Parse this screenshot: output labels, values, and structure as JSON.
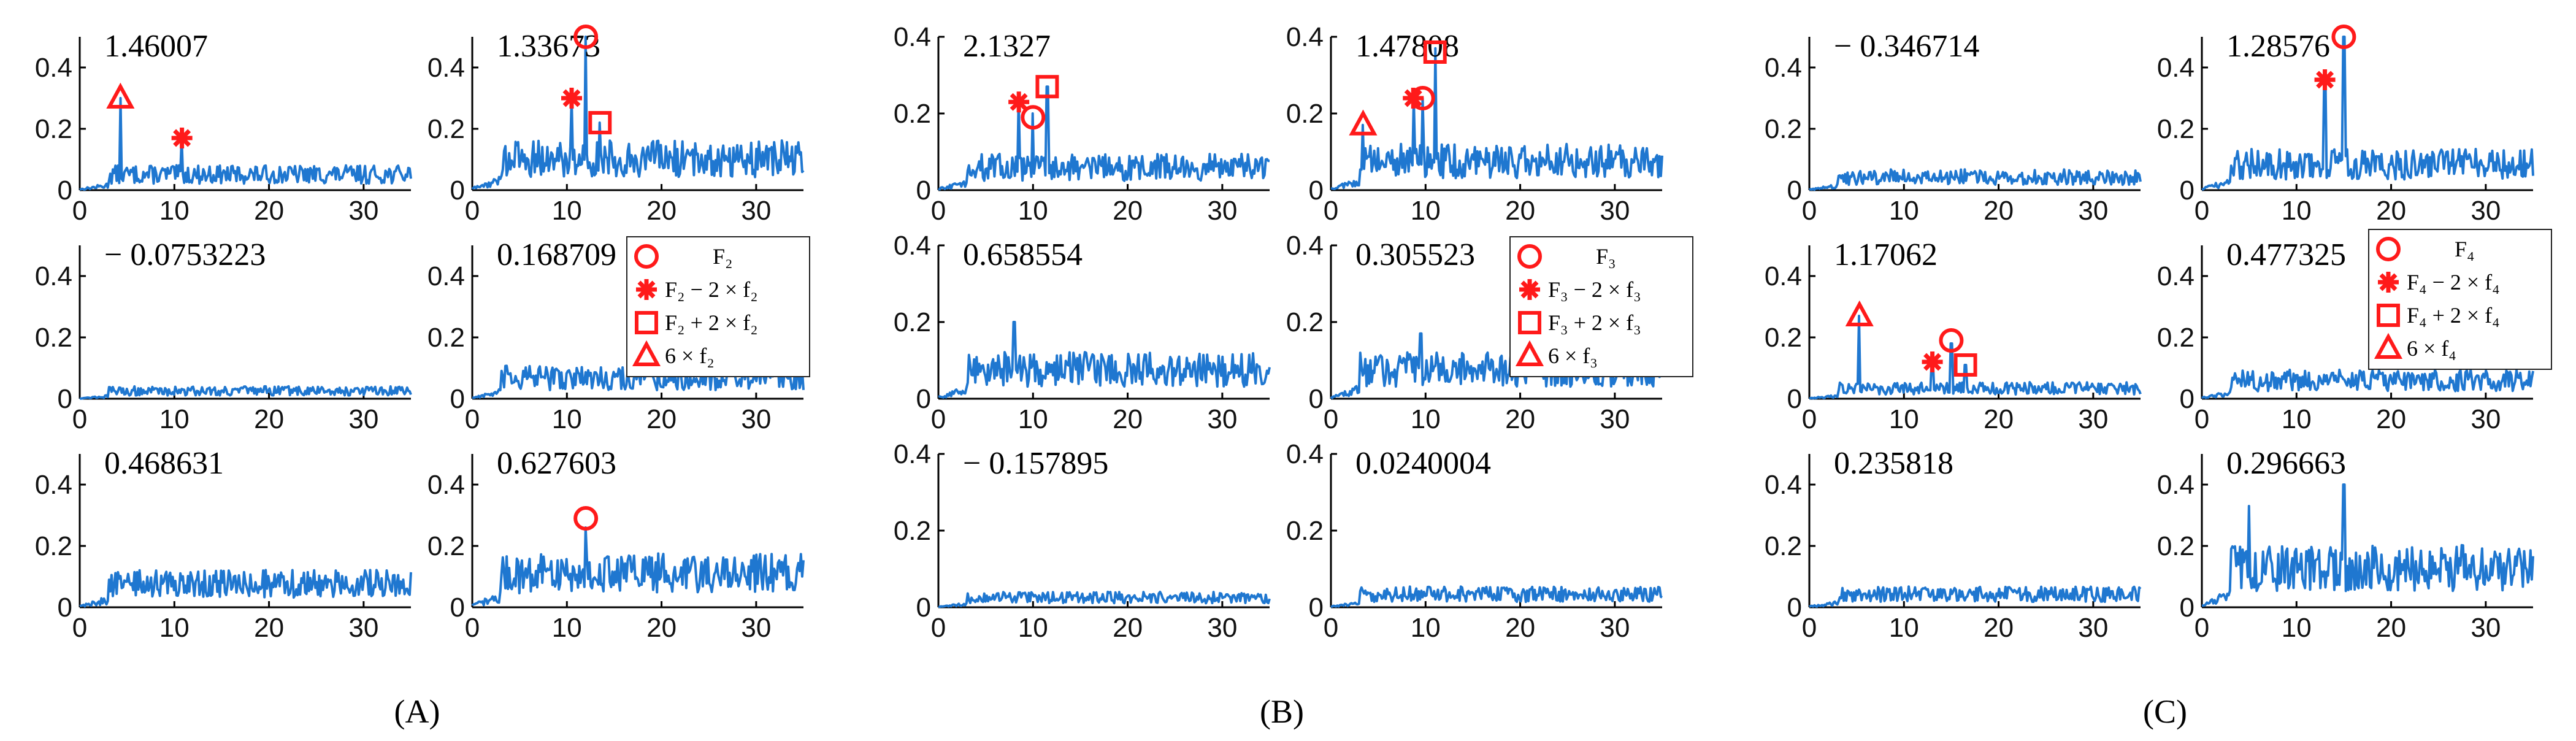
{
  "panel_labels": [
    "(A)",
    "(B)",
    "(C)"
  ],
  "legends": [
    {
      "group": "A",
      "entries": [
        "F₂",
        "F₂ − 2 × f₂",
        "F₂ + 2 × f₂",
        "6 × f₂"
      ]
    },
    {
      "group": "B",
      "entries": [
        "F₃",
        "F₃ − 2 × f₃",
        "F₃ + 2 × f₃",
        "6 × f₃"
      ]
    },
    {
      "group": "C",
      "entries": [
        "F₄",
        "F₄ − 2 × f₄",
        "F₄ + 2 × f₄",
        "6 × f₄"
      ]
    }
  ],
  "marker_legend_symbols": [
    "circle",
    "asterisk",
    "square",
    "triangle"
  ],
  "colors": {
    "line": "#1f77d0",
    "marker": "#ff1a1a"
  },
  "chart_data": [
    {
      "type": "line",
      "group": "A",
      "row": 0,
      "col": 0,
      "annotation": "1.46007",
      "xlim": [
        0,
        35
      ],
      "ylim": [
        0,
        0.5
      ],
      "xticks": [
        "0",
        "10",
        "20",
        "30"
      ],
      "yticks": [
        "0",
        "0.2",
        "0.4"
      ],
      "spikes": [
        [
          4.3,
          0.3
        ],
        [
          10.8,
          0.17
        ]
      ],
      "base_level": 0.06,
      "markers": [
        {
          "symbol": "triangle",
          "x": 4.3,
          "y": 0.3
        },
        {
          "symbol": "asterisk",
          "x": 10.8,
          "y": 0.17
        }
      ]
    },
    {
      "type": "line",
      "group": "A",
      "row": 0,
      "col": 1,
      "annotation": "1.33673",
      "xlim": [
        0,
        35
      ],
      "ylim": [
        0,
        0.5
      ],
      "xticks": [
        "0",
        "10",
        "20",
        "30"
      ],
      "yticks": [
        "0",
        "0.2",
        "0.4"
      ],
      "spikes": [
        [
          10.5,
          0.3
        ],
        [
          12.0,
          0.5
        ],
        [
          13.5,
          0.22
        ]
      ],
      "base_level": 0.12,
      "markers": [
        {
          "symbol": "asterisk",
          "x": 10.5,
          "y": 0.3
        },
        {
          "symbol": "circle",
          "x": 12.0,
          "y": 0.5
        },
        {
          "symbol": "square",
          "x": 13.5,
          "y": 0.22
        }
      ]
    },
    {
      "type": "line",
      "group": "A",
      "row": 1,
      "col": 0,
      "annotation": "− 0.0753223",
      "xlim": [
        0,
        35
      ],
      "ylim": [
        0,
        0.5
      ],
      "xticks": [
        "0",
        "10",
        "20",
        "30"
      ],
      "yticks": [
        "0",
        "0.2",
        "0.4"
      ],
      "spikes": [],
      "base_level": 0.03,
      "markers": []
    },
    {
      "type": "line",
      "group": "A",
      "row": 1,
      "col": 1,
      "annotation": "0.168709",
      "xlim": [
        0,
        35
      ],
      "ylim": [
        0,
        0.5
      ],
      "xticks": [
        "0",
        "10",
        "20",
        "30"
      ],
      "yticks": [
        "0",
        "0.2",
        "0.4"
      ],
      "spikes": [],
      "base_level": 0.08,
      "markers": []
    },
    {
      "type": "line",
      "group": "A",
      "row": 2,
      "col": 0,
      "annotation": "0.468631",
      "xlim": [
        0,
        35
      ],
      "ylim": [
        0,
        0.5
      ],
      "xticks": [
        "0",
        "10",
        "20",
        "30"
      ],
      "yticks": [
        "0",
        "0.2",
        "0.4"
      ],
      "spikes": [],
      "base_level": 0.09,
      "markers": []
    },
    {
      "type": "line",
      "group": "A",
      "row": 2,
      "col": 1,
      "annotation": "0.627603",
      "xlim": [
        0,
        35
      ],
      "ylim": [
        0,
        0.5
      ],
      "xticks": [
        "0",
        "10",
        "20",
        "30"
      ],
      "yticks": [
        "0",
        "0.2",
        "0.4"
      ],
      "spikes": [
        [
          12.0,
          0.26
        ]
      ],
      "base_level": 0.13,
      "markers": [
        {
          "symbol": "circle",
          "x": 12.0,
          "y": 0.29
        }
      ]
    },
    {
      "type": "line",
      "group": "B",
      "row": 0,
      "col": 0,
      "annotation": "2.1327",
      "xlim": [
        0,
        35
      ],
      "ylim": [
        0,
        0.4
      ],
      "xticks": [
        "0",
        "10",
        "20",
        "30"
      ],
      "yticks": [
        "0",
        "0.2",
        "0.4"
      ],
      "spikes": [
        [
          8.5,
          0.24
        ],
        [
          10.0,
          0.2
        ],
        [
          11.5,
          0.27
        ]
      ],
      "base_level": 0.07,
      "markers": [
        {
          "symbol": "asterisk",
          "x": 8.5,
          "y": 0.23
        },
        {
          "symbol": "circle",
          "x": 10.0,
          "y": 0.19
        },
        {
          "symbol": "square",
          "x": 11.5,
          "y": 0.27
        }
      ]
    },
    {
      "type": "line",
      "group": "B",
      "row": 0,
      "col": 1,
      "annotation": "1.47808",
      "xlim": [
        0,
        35
      ],
      "ylim": [
        0,
        0.4
      ],
      "xticks": [
        "0",
        "10",
        "20",
        "30"
      ],
      "yticks": [
        "0",
        "0.2",
        "0.4"
      ],
      "spikes": [
        [
          3.4,
          0.17
        ],
        [
          8.7,
          0.24
        ],
        [
          9.7,
          0.24
        ],
        [
          11.0,
          0.37
        ]
      ],
      "base_level": 0.09,
      "markers": [
        {
          "symbol": "triangle",
          "x": 3.4,
          "y": 0.17
        },
        {
          "symbol": "asterisk",
          "x": 8.7,
          "y": 0.24
        },
        {
          "symbol": "circle",
          "x": 9.7,
          "y": 0.24
        },
        {
          "symbol": "square",
          "x": 11.0,
          "y": 0.36
        }
      ]
    },
    {
      "type": "line",
      "group": "B",
      "row": 1,
      "col": 0,
      "annotation": "0.658554",
      "xlim": [
        0,
        35
      ],
      "ylim": [
        0,
        0.4
      ],
      "xticks": [
        "0",
        "10",
        "20",
        "30"
      ],
      "yticks": [
        "0",
        "0.2",
        "0.4"
      ],
      "spikes": [
        [
          8.0,
          0.2
        ]
      ],
      "base_level": 0.09,
      "markers": []
    },
    {
      "type": "line",
      "group": "B",
      "row": 1,
      "col": 1,
      "annotation": "0.305523",
      "xlim": [
        0,
        35
      ],
      "ylim": [
        0,
        0.4
      ],
      "xticks": [
        "0",
        "10",
        "20",
        "30"
      ],
      "yticks": [
        "0",
        "0.2",
        "0.4"
      ],
      "spikes": [
        [
          9.5,
          0.17
        ]
      ],
      "base_level": 0.09,
      "markers": []
    },
    {
      "type": "line",
      "group": "B",
      "row": 2,
      "col": 0,
      "annotation": "− 0.157895",
      "xlim": [
        0,
        35
      ],
      "ylim": [
        0,
        0.4
      ],
      "xticks": [
        "0",
        "10",
        "20",
        "30"
      ],
      "yticks": [
        "0",
        "0.2",
        "0.4"
      ],
      "spikes": [],
      "base_level": 0.03,
      "markers": []
    },
    {
      "type": "line",
      "group": "B",
      "row": 2,
      "col": 1,
      "annotation": "0.0240004",
      "xlim": [
        0,
        35
      ],
      "ylim": [
        0,
        0.4
      ],
      "xticks": [
        "0",
        "10",
        "20",
        "30"
      ],
      "yticks": [
        "0",
        "0.2",
        "0.4"
      ],
      "spikes": [],
      "base_level": 0.04,
      "markers": []
    },
    {
      "type": "line",
      "group": "C",
      "row": 0,
      "col": 0,
      "annotation": "− 0.346714",
      "xlim": [
        0,
        35
      ],
      "ylim": [
        0,
        0.5
      ],
      "xticks": [
        "0",
        "10",
        "20",
        "30"
      ],
      "yticks": [
        "0",
        "0.2",
        "0.4"
      ],
      "spikes": [],
      "base_level": 0.05,
      "markers": []
    },
    {
      "type": "line",
      "group": "C",
      "row": 0,
      "col": 1,
      "annotation": "1.28576",
      "xlim": [
        0,
        35
      ],
      "ylim": [
        0,
        0.5
      ],
      "xticks": [
        "0",
        "10",
        "20",
        "30"
      ],
      "yticks": [
        "0",
        "0.2",
        "0.4"
      ],
      "spikes": [
        [
          13.0,
          0.36
        ],
        [
          15.0,
          0.5
        ]
      ],
      "base_level": 0.1,
      "markers": [
        {
          "symbol": "asterisk",
          "x": 13.0,
          "y": 0.36
        },
        {
          "symbol": "circle",
          "x": 15.0,
          "y": 0.5
        }
      ]
    },
    {
      "type": "line",
      "group": "C",
      "row": 1,
      "col": 0,
      "annotation": "1.17062",
      "xlim": [
        0,
        35
      ],
      "ylim": [
        0,
        0.5
      ],
      "xticks": [
        "0",
        "10",
        "20",
        "30"
      ],
      "yticks": [
        "0",
        "0.2",
        "0.4"
      ],
      "spikes": [
        [
          5.3,
          0.27
        ],
        [
          13.0,
          0.12
        ],
        [
          15.0,
          0.18
        ],
        [
          16.5,
          0.11
        ]
      ],
      "base_level": 0.04,
      "markers": [
        {
          "symbol": "triangle",
          "x": 5.3,
          "y": 0.27
        },
        {
          "symbol": "asterisk",
          "x": 13.0,
          "y": 0.12
        },
        {
          "symbol": "circle",
          "x": 15.0,
          "y": 0.19
        },
        {
          "symbol": "square",
          "x": 16.5,
          "y": 0.11
        }
      ]
    },
    {
      "type": "line",
      "group": "C",
      "row": 1,
      "col": 1,
      "annotation": "0.477325",
      "xlim": [
        0,
        35
      ],
      "ylim": [
        0,
        0.5
      ],
      "xticks": [
        "0",
        "10",
        "20",
        "30"
      ],
      "yticks": [
        "0",
        "0.2",
        "0.4"
      ],
      "spikes": [],
      "base_level": 0.07,
      "markers": []
    },
    {
      "type": "line",
      "group": "C",
      "row": 2,
      "col": 0,
      "annotation": "0.235818",
      "xlim": [
        0,
        35
      ],
      "ylim": [
        0,
        0.5
      ],
      "xticks": [
        "0",
        "10",
        "20",
        "30"
      ],
      "yticks": [
        "0",
        "0.2",
        "0.4"
      ],
      "spikes": [],
      "base_level": 0.05,
      "markers": []
    },
    {
      "type": "line",
      "group": "C",
      "row": 2,
      "col": 1,
      "annotation": "0.296663",
      "xlim": [
        0,
        35
      ],
      "ylim": [
        0,
        0.5
      ],
      "xticks": [
        "0",
        "10",
        "20",
        "30"
      ],
      "yticks": [
        "0",
        "0.2",
        "0.4"
      ],
      "spikes": [
        [
          5.0,
          0.33
        ],
        [
          15.0,
          0.4
        ]
      ],
      "base_level": 0.15,
      "markers": []
    }
  ]
}
